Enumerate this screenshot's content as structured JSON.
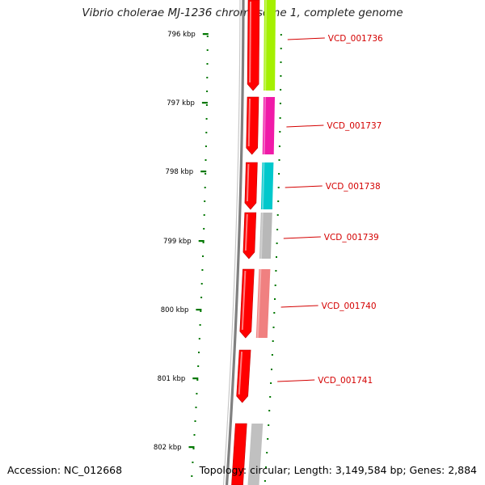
{
  "title": "Vibrio cholerae MJ-1236 chromosome 1, complete genome",
  "footer": {
    "accession": "Accession: NC_012668",
    "summary": "Topology: circular; Length: 3,149,584 bp; Genes: 2,884"
  },
  "ticks": [
    {
      "label": "796 kbp",
      "position_kbp": 796
    },
    {
      "label": "797 kbp",
      "position_kbp": 797
    },
    {
      "label": "798 kbp",
      "position_kbp": 798
    },
    {
      "label": "799 kbp",
      "position_kbp": 799
    },
    {
      "label": "800 kbp",
      "position_kbp": 800
    },
    {
      "label": "801 kbp",
      "position_kbp": 801
    },
    {
      "label": "802 kbp",
      "position_kbp": 802
    }
  ],
  "genes": [
    {
      "label": "VCD_001736",
      "color": "#a4f000"
    },
    {
      "label": "VCD_001737",
      "color": "#f01aa8"
    },
    {
      "label": "VCD_001738",
      "color": "#00c8cc"
    },
    {
      "label": "VCD_001739",
      "color": "#b8b8b8"
    },
    {
      "label": "VCD_001740",
      "color": "#f08080"
    },
    {
      "label": "VCD_001741",
      "color": "#ff0000"
    }
  ],
  "colors": {
    "forward_strand": "#ff0000",
    "backbone": "#808080",
    "ticks": "#007700",
    "gene_label": "#d40000"
  }
}
